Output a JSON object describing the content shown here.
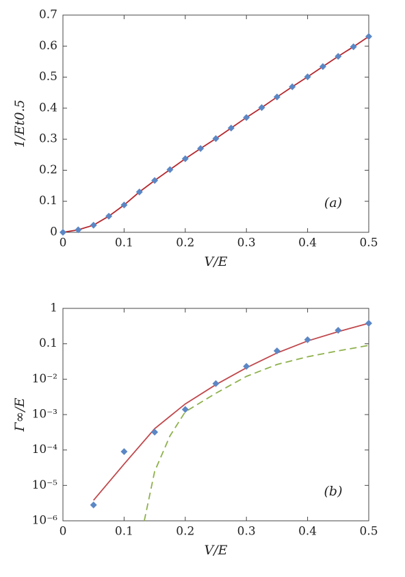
{
  "chart_data": [
    {
      "type": "line",
      "xlabel": "V/E",
      "ylabel": "1/Et0.5",
      "annotation": "(a)",
      "xlim": [
        0,
        0.5
      ],
      "ylim": [
        0,
        0.7
      ],
      "xticks": [
        0,
        0.1,
        0.2,
        0.3,
        0.4,
        0.5
      ],
      "yticks": [
        0,
        0.1,
        0.2,
        0.3,
        0.4,
        0.5,
        0.6,
        0.7
      ],
      "series": [
        {
          "mark": "line",
          "color": "#b5272d",
          "x": [
            0,
            0.025,
            0.05,
            0.075,
            0.1,
            0.125,
            0.15,
            0.175,
            0.2,
            0.225,
            0.25,
            0.275,
            0.3,
            0.325,
            0.35,
            0.375,
            0.4,
            0.425,
            0.45,
            0.475,
            0.5
          ],
          "values": [
            0,
            0.008,
            0.023,
            0.052,
            0.088,
            0.13,
            0.167,
            0.202,
            0.237,
            0.27,
            0.302,
            0.336,
            0.37,
            0.402,
            0.436,
            0.469,
            0.501,
            0.534,
            0.567,
            0.598,
            0.631
          ]
        },
        {
          "mark": "diamond",
          "color": "#5b87c5",
          "x": [
            0,
            0.025,
            0.05,
            0.075,
            0.1,
            0.125,
            0.15,
            0.175,
            0.2,
            0.225,
            0.25,
            0.275,
            0.3,
            0.325,
            0.35,
            0.375,
            0.4,
            0.425,
            0.45,
            0.475,
            0.5
          ],
          "values": [
            0,
            0.008,
            0.023,
            0.052,
            0.088,
            0.13,
            0.167,
            0.202,
            0.237,
            0.27,
            0.302,
            0.336,
            0.37,
            0.402,
            0.436,
            0.469,
            0.501,
            0.534,
            0.567,
            0.598,
            0.631
          ]
        }
      ]
    },
    {
      "type": "line",
      "xlabel": "V/E",
      "ylabel": "Γ∞/E",
      "annotation": "(b)",
      "log_y": true,
      "xlim": [
        0,
        0.5
      ],
      "ylim": [
        1e-06,
        1
      ],
      "xticks": [
        0,
        0.1,
        0.2,
        0.3,
        0.4,
        0.5
      ],
      "yticks": [
        {
          "value": 1e-06,
          "label": "10⁻⁶"
        },
        {
          "value": 1e-05,
          "label": "10⁻⁵"
        },
        {
          "value": 0.0001,
          "label": "10⁻⁴"
        },
        {
          "value": 0.001,
          "label": "10⁻³"
        },
        {
          "value": 0.01,
          "label": "10⁻²"
        },
        0.1,
        1
      ],
      "series": [
        {
          "mark": "line",
          "color": "#c0474b",
          "x": [
            0.05,
            0.1,
            0.15,
            0.2,
            0.25,
            0.3,
            0.35,
            0.4,
            0.45,
            0.5
          ],
          "values": [
            3.8e-06,
            4e-05,
            0.0004,
            0.002,
            0.007,
            0.021,
            0.055,
            0.12,
            0.22,
            0.38
          ]
        },
        {
          "mark": "line",
          "dash": true,
          "color": "#8db04a",
          "x": [
            0.133,
            0.15,
            0.175,
            0.2,
            0.25,
            0.3,
            0.35,
            0.4,
            0.45,
            0.5
          ],
          "values": [
            1e-06,
            2.5e-05,
            0.00025,
            0.0012,
            0.004,
            0.012,
            0.026,
            0.043,
            0.063,
            0.09
          ]
        },
        {
          "mark": "diamond",
          "color": "#5b87c5",
          "x": [
            0.05,
            0.1,
            0.15,
            0.2,
            0.25,
            0.3,
            0.35,
            0.4,
            0.45,
            0.5
          ],
          "values": [
            2.8e-06,
            9e-05,
            0.00032,
            0.0014,
            0.0075,
            0.023,
            0.063,
            0.13,
            0.24,
            0.38
          ]
        }
      ]
    }
  ]
}
